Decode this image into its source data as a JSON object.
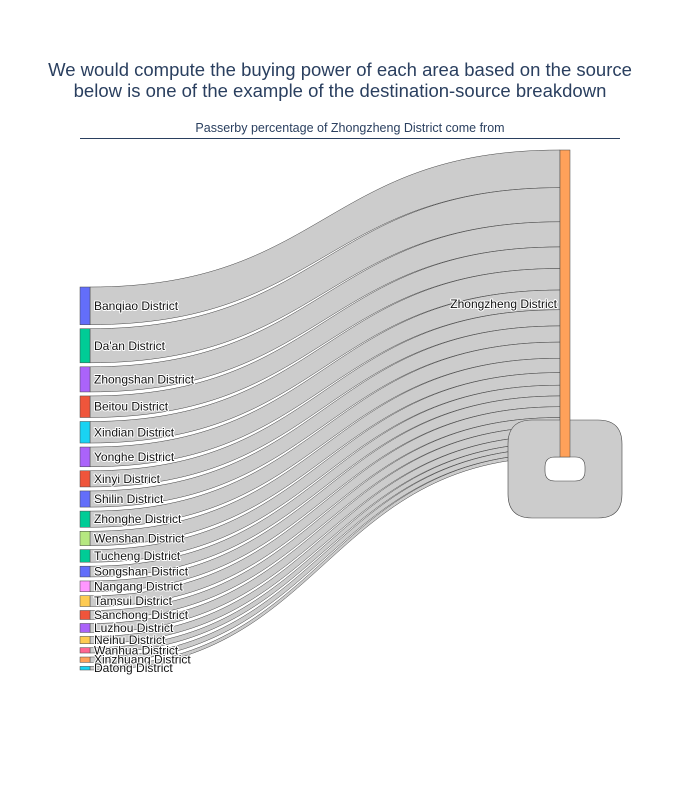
{
  "header": {
    "line1": "We would compute the buying power of each area based on the source",
    "line2": "below is one of the example of the destination-source breakdown"
  },
  "chart_data": {
    "type": "sankey",
    "title": "Passerby percentage of Zhongzheng District come from",
    "target": "Zhongzheng District",
    "target_color": "#FFA15A",
    "link_color": "#cccccc",
    "self_loop": true,
    "sources": [
      {
        "name": "Banqiao District",
        "value": 10.5,
        "color": "#636EFA"
      },
      {
        "name": "Da'an District",
        "value": 9.5,
        "color": "#00CC96"
      },
      {
        "name": "Zhongshan District",
        "value": 7.0,
        "color": "#AB63FA"
      },
      {
        "name": "Beitou District",
        "value": 6.0,
        "color": "#EF553B"
      },
      {
        "name": "Xindian District",
        "value": 6.0,
        "color": "#19D3F3"
      },
      {
        "name": "Yonghe District",
        "value": 5.5,
        "color": "#AB63FA"
      },
      {
        "name": "Xinyi District",
        "value": 4.5,
        "color": "#EF553B"
      },
      {
        "name": "Shilin District",
        "value": 4.5,
        "color": "#636EFA"
      },
      {
        "name": "Zhonghe District",
        "value": 4.5,
        "color": "#00CC96"
      },
      {
        "name": "Wenshan District",
        "value": 4.0,
        "color": "#B6E880"
      },
      {
        "name": "Tucheng District",
        "value": 3.5,
        "color": "#00CC96"
      },
      {
        "name": "Songshan District",
        "value": 3.0,
        "color": "#636EFA"
      },
      {
        "name": "Nangang District",
        "value": 3.0,
        "color": "#FF97FF"
      },
      {
        "name": "Tamsui District",
        "value": 3.0,
        "color": "#FECB52"
      },
      {
        "name": "Sanchong District",
        "value": 2.5,
        "color": "#EF553B"
      },
      {
        "name": "Luzhou District",
        "value": 2.5,
        "color": "#AB63FA"
      },
      {
        "name": "Neihu District",
        "value": 2.0,
        "color": "#FECB52"
      },
      {
        "name": "Wanhua District",
        "value": 1.5,
        "color": "#FF6692"
      },
      {
        "name": "Xinzhuang District",
        "value": 1.5,
        "color": "#FFA15A"
      },
      {
        "name": "Datong District",
        "value": 1.0,
        "color": "#19D3F3"
      }
    ]
  }
}
